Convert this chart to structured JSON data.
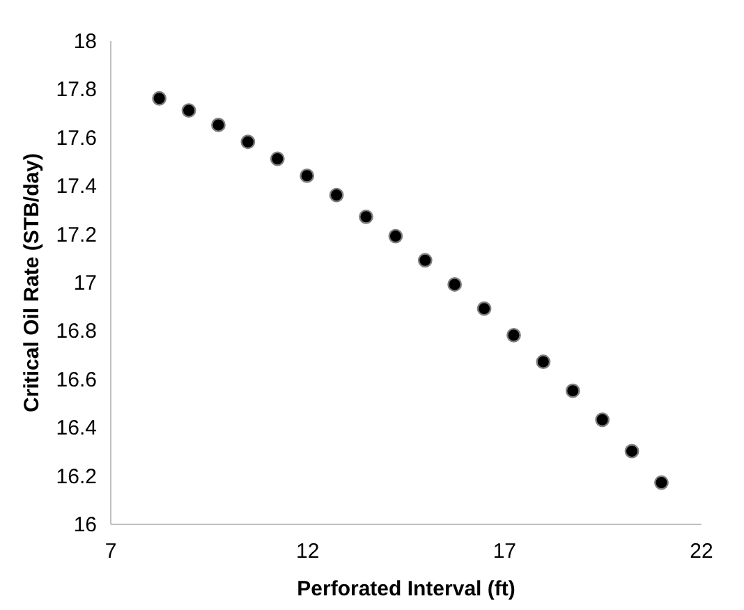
{
  "chart_data": {
    "type": "scatter",
    "xlabel": "Perforated Interval (ft)",
    "ylabel": "Critical Oil Rate (STB/day)",
    "x": [
      8.25,
      9.0,
      9.75,
      10.5,
      11.25,
      12.0,
      12.75,
      13.5,
      14.25,
      15.0,
      15.75,
      16.5,
      17.25,
      18.0,
      18.75,
      19.5,
      20.25,
      21.0
    ],
    "series": [
      {
        "color": "#000000",
        "values": [
          17.76,
          17.71,
          17.65,
          17.58,
          17.51,
          17.44,
          17.36,
          17.27,
          17.19,
          17.09,
          16.99,
          16.89,
          16.78,
          16.67,
          16.55,
          16.43,
          16.3,
          16.17
        ]
      }
    ],
    "xlim": [
      7,
      22
    ],
    "xticks": [
      7,
      12,
      17,
      22
    ],
    "ylim": [
      16,
      18
    ],
    "yticks": [
      16,
      16.2,
      16.4,
      16.6,
      16.8,
      17,
      17.2,
      17.4,
      17.6,
      17.8,
      18
    ],
    "marker": "circle",
    "grid": false
  }
}
